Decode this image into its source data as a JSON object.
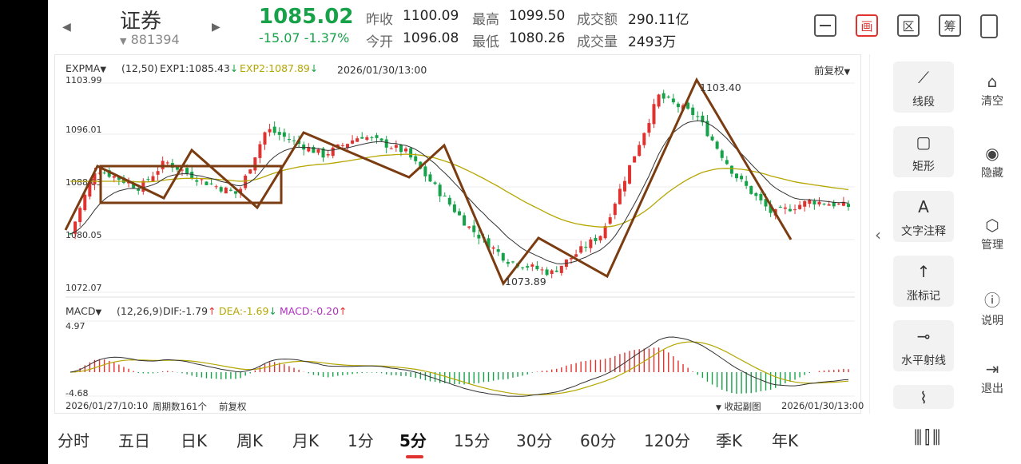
{
  "header": {
    "name": "证券",
    "code": "881394",
    "price": "1085.02",
    "change": "-15.07",
    "change_pct": "-1.37%",
    "prev_close_label": "昨收",
    "prev_close": "1100.09",
    "open_label": "今开",
    "open": "1096.08",
    "high_label": "最高",
    "high": "1099.50",
    "low_label": "最低",
    "low": "1080.26",
    "amount_label": "成交额",
    "amount": "290.11亿",
    "volume_label": "成交量",
    "volume": "2493万",
    "toolbar_icons": [
      "minus-box",
      "draw-box",
      "zone-box",
      "chip-box",
      "phone-switch"
    ],
    "btn_draw": "画",
    "btn_zone": "区",
    "btn_chip": "筹"
  },
  "main_chart": {
    "indicator": "EXPMA",
    "params": "(12,50)",
    "exp1_label": "EXP1:1085.43",
    "exp2_label": "EXP2:1087.89",
    "datetime": "2026/01/30/13:00",
    "adjust": "前复权",
    "y_labels": [
      "1103.99",
      "1096.01",
      "1088.03",
      "1080.05",
      "1072.07"
    ],
    "high_mark": "1103.40",
    "low_mark": "1073.89",
    "colors": {
      "up": "#e0322f",
      "down": "#17a24a",
      "exp1": "#333333",
      "exp2": "#b5a600",
      "trend": "#7a3c10"
    }
  },
  "macd": {
    "indicator": "MACD",
    "params": "(12,26,9)",
    "dif_label": "DIF:-1.79",
    "dea_label": "DEA:-1.69",
    "macd_label": "MACD:-0.20",
    "y_top": "4.97",
    "y_bottom": "-4.68"
  },
  "footer": {
    "start_time": "2026/01/27/10:10",
    "period_count": "周期数161个",
    "adjust": "前复权",
    "collapse": "收起副图",
    "end_time": "2026/01/30/13:00"
  },
  "tools": [
    {
      "label": "线段",
      "icon": "segment-icon"
    },
    {
      "label": "矩形",
      "icon": "rectangle-icon"
    },
    {
      "label": "文字注释",
      "icon": "text-icon"
    },
    {
      "label": "涨标记",
      "icon": "up-arrow-icon"
    },
    {
      "label": "水平射线",
      "icon": "ray-icon"
    }
  ],
  "side": [
    {
      "label": "清空",
      "icon": "broom-icon"
    },
    {
      "label": "隐藏",
      "icon": "eye-icon"
    },
    {
      "label": "管理",
      "icon": "gear-icon"
    },
    {
      "label": "说明",
      "icon": "help-icon"
    },
    {
      "label": "退出",
      "icon": "exit-icon"
    }
  ],
  "tabs": [
    "分时",
    "五日",
    "日K",
    "周K",
    "月K",
    "1分",
    "5分",
    "15分",
    "30分",
    "60分",
    "120分",
    "季K",
    "年K"
  ],
  "active_tab": "5分"
}
